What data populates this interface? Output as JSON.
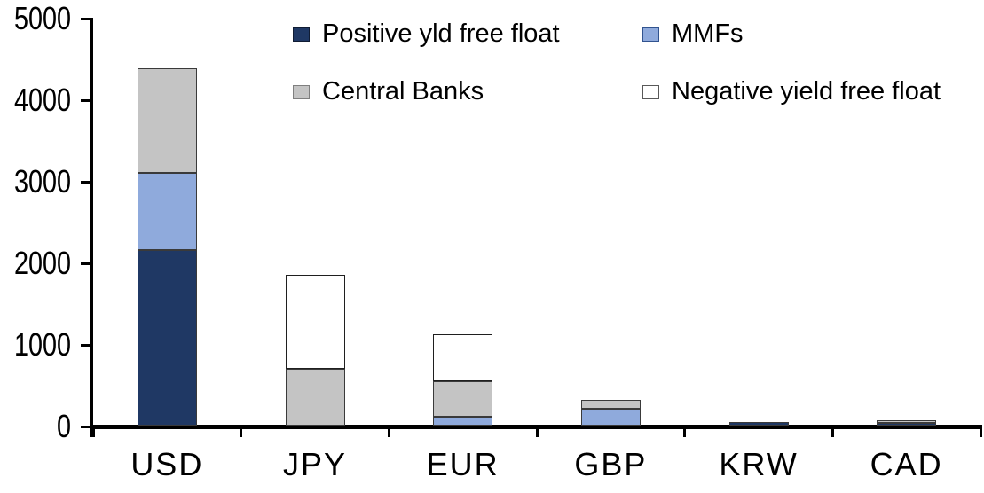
{
  "chart_data": {
    "type": "bar",
    "stacked": true,
    "title": "",
    "xlabel": "",
    "ylabel": "",
    "ylim": [
      0,
      5000
    ],
    "yticks": [
      0,
      1000,
      2000,
      3000,
      4000,
      5000
    ],
    "grid": false,
    "legend_position": "top",
    "categories": [
      "USD",
      "JPY",
      "EUR",
      "GBP",
      "KRW",
      "CAD"
    ],
    "series": [
      {
        "name": "Positive yld free float",
        "color": "#1F3864",
        "border_color": "#101c33",
        "values": [
          2150,
          0,
          0,
          0,
          45,
          30
        ]
      },
      {
        "name": "MMFs",
        "color": "#8FAADC",
        "border_color": "#31538f",
        "values": [
          950,
          0,
          110,
          210,
          0,
          0
        ]
      },
      {
        "name": "Central Banks",
        "color": "#C4C4C4",
        "border_color": "#7f7f7f",
        "values": [
          1280,
          700,
          430,
          110,
          0,
          30
        ]
      },
      {
        "name": "Negative yield free float",
        "color": "#FFFFFF",
        "border_color": "#595959",
        "values": [
          0,
          1150,
          580,
          0,
          0,
          0
        ]
      }
    ]
  }
}
